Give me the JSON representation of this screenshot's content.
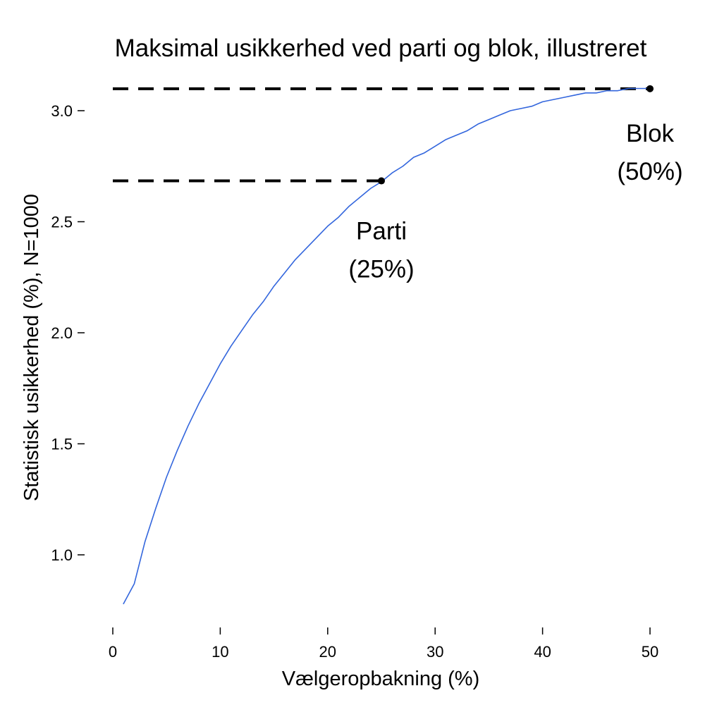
{
  "chart_data": {
    "type": "line",
    "title": "Maksimal usikkerhed ved parti og blok, illustreret",
    "xlabel": "Vælgeropbakning (%)",
    "ylabel": "Statistisk usikkerhed (%), N=1000",
    "xlim": [
      0,
      50
    ],
    "ylim": [
      0.7,
      3.25
    ],
    "x_ticks": [
      0,
      10,
      20,
      30,
      40,
      50
    ],
    "y_ticks": [
      1.0,
      1.5,
      2.0,
      2.5,
      3.0
    ],
    "y_tick_labels": [
      "1.0",
      "1.5",
      "2.0",
      "2.5",
      "3.0"
    ],
    "grid": false,
    "series": [
      {
        "color": "#3366dd",
        "x": [
          1,
          2,
          3,
          4,
          5,
          6,
          7,
          8,
          9,
          10,
          11,
          12,
          13,
          14,
          15,
          16,
          17,
          18,
          19,
          20,
          21,
          22,
          23,
          24,
          25,
          26,
          27,
          28,
          29,
          30,
          31,
          32,
          33,
          34,
          35,
          36,
          37,
          38,
          39,
          40,
          41,
          42,
          43,
          44,
          45,
          46,
          47,
          48,
          49,
          50
        ],
        "y": [
          0.78,
          0.87,
          1.06,
          1.21,
          1.35,
          1.47,
          1.58,
          1.68,
          1.77,
          1.86,
          1.94,
          2.01,
          2.08,
          2.14,
          2.21,
          2.27,
          2.33,
          2.38,
          2.43,
          2.48,
          2.52,
          2.57,
          2.61,
          2.65,
          2.68,
          2.72,
          2.75,
          2.79,
          2.81,
          2.84,
          2.87,
          2.89,
          2.91,
          2.94,
          2.96,
          2.98,
          3.0,
          3.01,
          3.02,
          3.04,
          3.05,
          3.06,
          3.07,
          3.08,
          3.08,
          3.09,
          3.09,
          3.1,
          3.1,
          3.1
        ]
      }
    ],
    "reference_lines": [
      {
        "x_from": 0,
        "x_to": 25,
        "y": 2.684,
        "style": "dashed",
        "color": "#000000"
      },
      {
        "x_from": 0,
        "x_to": 50,
        "y": 3.099,
        "style": "dashed",
        "color": "#000000"
      }
    ],
    "points": [
      {
        "x": 25,
        "y": 2.684,
        "color": "#000000"
      },
      {
        "x": 50,
        "y": 3.099,
        "color": "#000000"
      }
    ],
    "annotations": [
      {
        "lines": [
          "Parti",
          "(25%)"
        ],
        "x": 25,
        "y": 2.42
      },
      {
        "lines": [
          "Blok",
          "(50%)"
        ],
        "x": 50,
        "y": 2.86
      }
    ]
  }
}
